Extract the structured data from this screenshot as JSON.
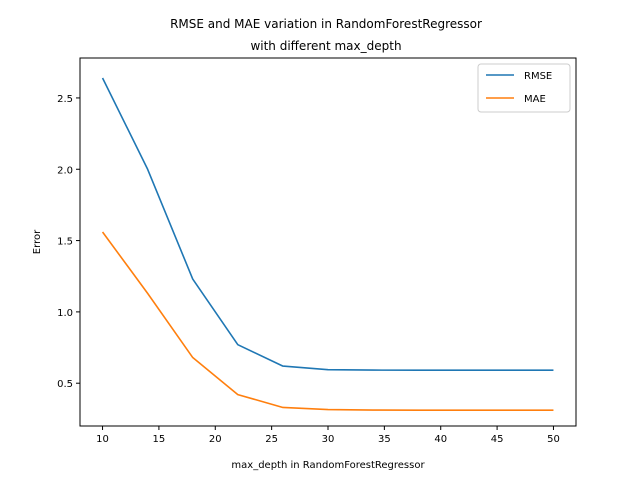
{
  "chart_data": {
    "type": "line",
    "title_lines": [
      "RMSE and MAE variation in RandomForestRegressor",
      "with different max_depth"
    ],
    "xlabel": "max_depth in RandomForestRegressor",
    "ylabel": "Error",
    "x": [
      10,
      14,
      18,
      22,
      26,
      30,
      34,
      38,
      42,
      46,
      50
    ],
    "xlim": [
      8,
      52
    ],
    "ylim": [
      0.2,
      2.78
    ],
    "xticks": [
      10,
      15,
      20,
      25,
      30,
      35,
      40,
      45,
      50
    ],
    "yticks": [
      0.5,
      1.0,
      1.5,
      2.0,
      2.5
    ],
    "ytick_labels": [
      "0.5",
      "1.0",
      "1.5",
      "2.0",
      "2.5"
    ],
    "grid": false,
    "legend_position": "top-right",
    "series": [
      {
        "name": "RMSE",
        "color": "#1f77b4",
        "values": [
          2.64,
          2.0,
          1.23,
          0.77,
          0.62,
          0.595,
          0.592,
          0.591,
          0.591,
          0.591,
          0.591
        ]
      },
      {
        "name": "MAE",
        "color": "#ff7f0e",
        "values": [
          1.56,
          1.13,
          0.68,
          0.42,
          0.33,
          0.315,
          0.312,
          0.311,
          0.311,
          0.311,
          0.311
        ]
      }
    ]
  }
}
